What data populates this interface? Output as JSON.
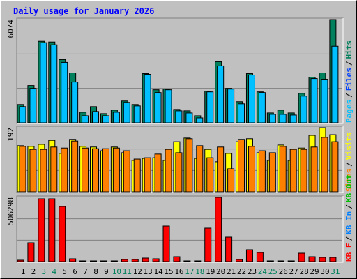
{
  "chart_data": {
    "type": "bar",
    "title": "Daily usage for January 2026",
    "categories": [
      "1",
      "2",
      "3",
      "4",
      "5",
      "6",
      "7",
      "8",
      "9",
      "10",
      "11",
      "12",
      "13",
      "14",
      "15",
      "16",
      "17",
      "18",
      "19",
      "20",
      "21",
      "22",
      "23",
      "24",
      "25",
      "26",
      "27",
      "28",
      "29",
      "30",
      "31"
    ],
    "category_colors": [
      "#000000",
      "#000000",
      "#00805c",
      "#00805c",
      "#000000",
      "#000000",
      "#000000",
      "#000000",
      "#000000",
      "#00805c",
      "#00805c",
      "#000000",
      "#000000",
      "#000000",
      "#000000",
      "#000000",
      "#00805c",
      "#00805c",
      "#000000",
      "#000000",
      "#000000",
      "#000000",
      "#000000",
      "#00805c",
      "#00805c",
      "#000000",
      "#000000",
      "#000000",
      "#000000",
      "#000000",
      "#00805c"
    ],
    "separator": "/",
    "grid_divisions": 3,
    "panels": [
      {
        "ylim": [
          0,
          6074
        ],
        "yticks": [
          6074
        ],
        "legend": [
          {
            "name": "Pages",
            "color": "#00c0ff"
          },
          {
            "name": "Files",
            "color": "#0040ff"
          },
          {
            "name": "Hits",
            "color": "#00805c"
          }
        ],
        "series": [
          {
            "legend": 2,
            "values": [
              1074,
              2190,
              4793,
              4752,
              3719,
              2934,
              620,
              950,
              537,
              744,
              1281,
              1074,
              2892,
              1942,
              1983,
              785,
              702,
              413,
              1859,
              3595,
              2025,
              1240,
              2892,
              1818,
              578,
              744,
              578,
              1735,
              2686,
              2934,
              6074
            ]
          },
          {
            "legend": 0,
            "values": [
              950,
              2025,
              4711,
              4587,
              3554,
              2397,
              413,
              661,
              413,
              620,
              1198,
              992,
              2851,
              1777,
              1942,
              702,
              578,
              289,
              1818,
              3347,
              1983,
              1116,
              2810,
              1777,
              496,
              496,
              455,
              1570,
              2603,
              2562,
              4504
            ]
          }
        ]
      },
      {
        "ylim": [
          0,
          192
        ],
        "yticks": [
          192
        ],
        "legend": [
          {
            "name": "Sites",
            "color": "#ff8000"
          },
          {
            "name": "Visits",
            "color": "#ffff00"
          }
        ],
        "series": [
          {
            "legend": 1,
            "values": [
              138,
              136,
              142,
              154,
              115,
              157,
              136,
              134,
              123,
              134,
              117,
              94,
              100,
              102,
              94,
              150,
              161,
              100,
              127,
              90,
              115,
              150,
              159,
              117,
              94,
              140,
              94,
              131,
              169,
              192,
              171
            ]
          },
          {
            "legend": 0,
            "values": [
              136,
              127,
              127,
              134,
              131,
              152,
              131,
              129,
              129,
              131,
              123,
              98,
              102,
              113,
              127,
              117,
              159,
              138,
              102,
              134,
              69,
              157,
              136,
              123,
              117,
              136,
              127,
              127,
              134,
              163,
              150
            ]
          }
        ]
      },
      {
        "ylim": [
          0,
          506298
        ],
        "yticks": [
          506298
        ],
        "legend": [
          {
            "name": "KB F",
            "color": "#ff0000"
          },
          {
            "name": "KB In",
            "color": "#0080ff"
          },
          {
            "name": "KB Out",
            "color": "#00c000"
          }
        ],
        "series": [
          {
            "legend": 0,
            "values": [
              11006,
              148581,
              495270,
              495270,
              434737,
              22012,
              5503,
              5503,
              5503,
              5503,
              16509,
              16509,
              27515,
              22012,
              280653,
              38521,
              5503,
              5503,
              264144,
              506298,
              192605,
              16509,
              93551,
              71539,
              5503,
              5503,
              5503,
              66036,
              38521,
              33018,
              33018
            ]
          }
        ]
      }
    ]
  }
}
